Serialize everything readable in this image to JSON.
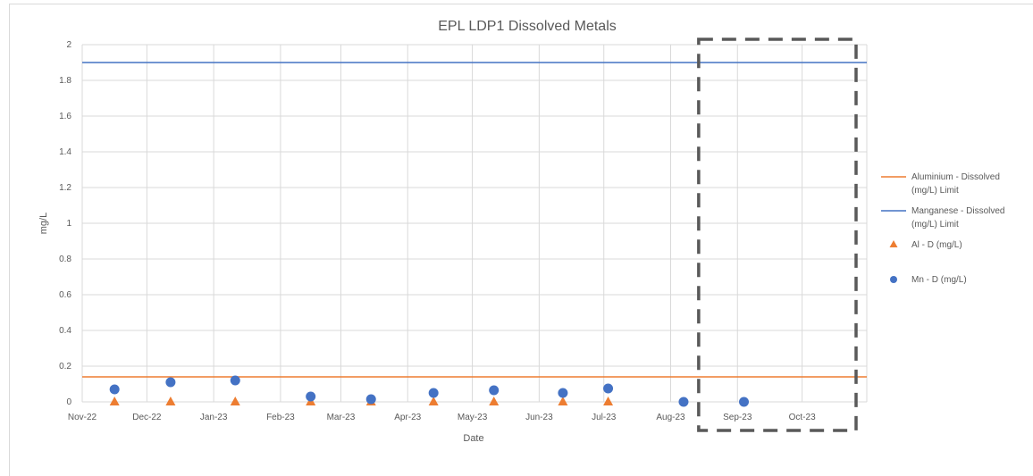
{
  "chart_data": {
    "type": "line",
    "title": "EPL LDP1 Dissolved Metals",
    "xlabel": "Date",
    "ylabel": "mg/L",
    "x_tick_labels": [
      "Nov-22",
      "Dec-22",
      "Jan-23",
      "Feb-23",
      "Mar-23",
      "Apr-23",
      "May-23",
      "Jun-23",
      "Jul-23",
      "Aug-23",
      "Sep-23",
      "Oct-23"
    ],
    "x_range": [
      "2022-11-01",
      "2023-10-31"
    ],
    "ylim": [
      0,
      2
    ],
    "y_tick_labels": [
      "0",
      "0.2",
      "0.4",
      "0.6",
      "0.8",
      "1",
      "1.2",
      "1.4",
      "1.6",
      "1.8",
      "2"
    ],
    "y_ticks": [
      0,
      0.2,
      0.4,
      0.6,
      0.8,
      1,
      1.2,
      1.4,
      1.6,
      1.8,
      2
    ],
    "grid": true,
    "legend_position": "right",
    "series": [
      {
        "name": "Aluminium - Dissolved (mg/L) Limit",
        "kind": "line",
        "color": "#ED7D31",
        "points": [
          {
            "x": "2022-11-01",
            "y": 0.14
          },
          {
            "x": "2023-10-31",
            "y": 0.14
          }
        ]
      },
      {
        "name": "Manganese - Dissolved (mg/L) Limit",
        "kind": "line",
        "color": "#4472C4",
        "points": [
          {
            "x": "2022-11-01",
            "y": 1.9
          },
          {
            "x": "2023-10-31",
            "y": 1.9
          }
        ]
      },
      {
        "name": "Al - D (mg/L)",
        "kind": "marker-triangle",
        "color": "#ED7D31",
        "points": [
          {
            "x": "2022-11-16",
            "y": 0.0
          },
          {
            "x": "2022-12-12",
            "y": 0.0
          },
          {
            "x": "2023-01-11",
            "y": 0.0
          },
          {
            "x": "2023-02-15",
            "y": 0.0
          },
          {
            "x": "2023-03-15",
            "y": 0.0
          },
          {
            "x": "2023-04-13",
            "y": 0.0
          },
          {
            "x": "2023-05-11",
            "y": 0.0
          },
          {
            "x": "2023-06-12",
            "y": 0.0
          },
          {
            "x": "2023-07-03",
            "y": 0.0
          }
        ]
      },
      {
        "name": "Mn - D (mg/L)",
        "kind": "marker-circle",
        "color": "#4472C4",
        "points": [
          {
            "x": "2022-11-16",
            "y": 0.07
          },
          {
            "x": "2022-12-12",
            "y": 0.11
          },
          {
            "x": "2023-01-11",
            "y": 0.12
          },
          {
            "x": "2023-02-15",
            "y": 0.03
          },
          {
            "x": "2023-03-15",
            "y": 0.015
          },
          {
            "x": "2023-04-13",
            "y": 0.05
          },
          {
            "x": "2023-05-11",
            "y": 0.065
          },
          {
            "x": "2023-06-12",
            "y": 0.05
          },
          {
            "x": "2023-07-03",
            "y": 0.075
          },
          {
            "x": "2023-08-07",
            "y": 0.0
          },
          {
            "x": "2023-09-04",
            "y": 0.0
          }
        ]
      }
    ],
    "annotations": [
      {
        "type": "dashed-box",
        "color": "#595959",
        "x_from": "2023-08-14",
        "x_to": "2023-10-31",
        "y_from": 0,
        "y_to": 2.0
      }
    ]
  }
}
